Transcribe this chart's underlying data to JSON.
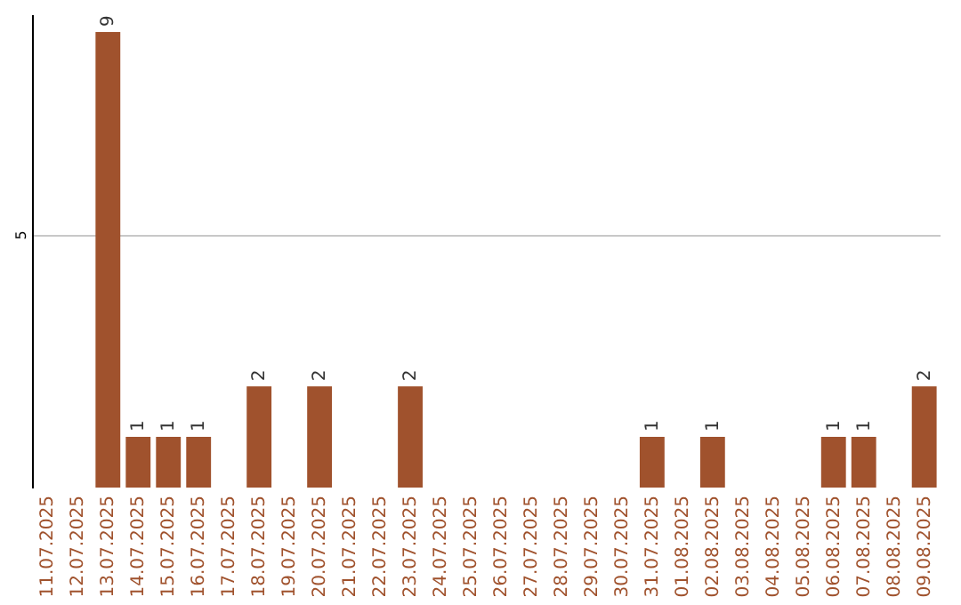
{
  "chart_data": {
    "type": "bar",
    "categories": [
      "11.07.2025",
      "12.07.2025",
      "13.07.2025",
      "14.07.2025",
      "15.07.2025",
      "16.07.2025",
      "17.07.2025",
      "18.07.2025",
      "19.07.2025",
      "20.07.2025",
      "21.07.2025",
      "22.07.2025",
      "23.07.2025",
      "24.07.2025",
      "25.07.2025",
      "26.07.2025",
      "27.07.2025",
      "28.07.2025",
      "29.07.2025",
      "30.07.2025",
      "31.07.2025",
      "01.08.2025",
      "02.08.2025",
      "03.08.2025",
      "04.08.2025",
      "05.08.2025",
      "06.08.2025",
      "07.08.2025",
      "08.08.2025",
      "09.08.2025"
    ],
    "values": [
      0,
      0,
      9,
      1,
      1,
      1,
      0,
      2,
      0,
      2,
      0,
      0,
      2,
      0,
      0,
      0,
      0,
      0,
      0,
      0,
      1,
      0,
      1,
      0,
      0,
      0,
      1,
      1,
      0,
      2
    ],
    "value_labels": [
      null,
      null,
      "9",
      "1",
      "1",
      "1",
      null,
      "2",
      null,
      "2",
      null,
      null,
      "2",
      null,
      null,
      null,
      null,
      null,
      null,
      null,
      "1",
      null,
      "1",
      null,
      null,
      null,
      "1",
      "1",
      null,
      "2"
    ],
    "color": "#a0522d",
    "ylim": [
      0,
      9.35
    ],
    "yticks": [
      5
    ],
    "grid": "y"
  }
}
